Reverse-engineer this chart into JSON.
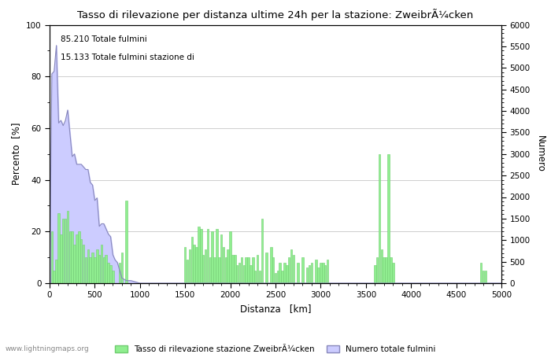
{
  "title": "Tasso di rilevazione per distanza ultime 24h per la stazione: ZweibrÃ¼cken",
  "xlabel": "Distanza   [km]",
  "ylabel_left": "Percento  [%]",
  "ylabel_right": "Numero",
  "annotation_line1": "85.210 Totale fulmini",
  "annotation_line2": "15.133 Totale fulmini stazione di",
  "legend_green": "Tasso di rilevazione stazione ZweibrÃ¼cken",
  "legend_blue": "Numero totale fulmini",
  "watermark": "www.lightningmaps.org",
  "xlim": [
    0,
    5000
  ],
  "ylim_left": [
    0,
    100
  ],
  "ylim_right": [
    0,
    6000
  ],
  "bar_color": "#90EE90",
  "fill_color": "#ccccff",
  "line_color": "#8888bb",
  "bar_edge_color": "#70cc70",
  "background_color": "#ffffff",
  "grid_color": "#bbbbbb",
  "green_bars_x": [
    25,
    50,
    75,
    100,
    125,
    150,
    175,
    200,
    225,
    250,
    275,
    300,
    325,
    350,
    375,
    400,
    425,
    450,
    475,
    500,
    525,
    550,
    575,
    600,
    625,
    650,
    675,
    700,
    725,
    750,
    775,
    800,
    850,
    1500,
    1525,
    1550,
    1575,
    1600,
    1625,
    1650,
    1675,
    1700,
    1725,
    1750,
    1775,
    1800,
    1825,
    1850,
    1875,
    1900,
    1925,
    1950,
    1975,
    2000,
    2025,
    2050,
    2075,
    2100,
    2125,
    2150,
    2175,
    2200,
    2225,
    2250,
    2275,
    2300,
    2325,
    2350,
    2400,
    2450,
    2475,
    2500,
    2525,
    2550,
    2575,
    2600,
    2625,
    2650,
    2675,
    2700,
    2750,
    2800,
    2850,
    2875,
    2900,
    2950,
    2975,
    3000,
    3025,
    3050,
    3075,
    3600,
    3625,
    3650,
    3675,
    3700,
    3725,
    3750,
    3775,
    3800,
    4775,
    4800,
    4825
  ],
  "green_bars_h": [
    20,
    5,
    9,
    27,
    19,
    25,
    25,
    28,
    20,
    20,
    15,
    19,
    20,
    17,
    15,
    10,
    13,
    10,
    12,
    10,
    13,
    11,
    15,
    10,
    11,
    8,
    7,
    5,
    0,
    0,
    8,
    12,
    32,
    14,
    9,
    13,
    18,
    15,
    14,
    22,
    21,
    11,
    13,
    21,
    10,
    20,
    10,
    21,
    10,
    19,
    14,
    10,
    13,
    20,
    11,
    11,
    7,
    8,
    10,
    7,
    10,
    10,
    7,
    10,
    5,
    11,
    5,
    25,
    12,
    14,
    10,
    4,
    5,
    8,
    5,
    8,
    7,
    10,
    13,
    11,
    8,
    10,
    6,
    7,
    8,
    9,
    6,
    8,
    8,
    7,
    9,
    7,
    10,
    50,
    13,
    10,
    10,
    50,
    10,
    8,
    8,
    5,
    5
  ],
  "blue_line_x": [
    0,
    25,
    50,
    75,
    100,
    125,
    150,
    175,
    200,
    225,
    250,
    275,
    300,
    325,
    350,
    375,
    400,
    425,
    450,
    475,
    500,
    525,
    550,
    575,
    600,
    625,
    650,
    675,
    700,
    725,
    750,
    800,
    850,
    900,
    1000,
    1200,
    1500,
    2000,
    3000,
    5000
  ],
  "blue_line_y": [
    0,
    81,
    82,
    92,
    62,
    63,
    61,
    63,
    67,
    58,
    49,
    50,
    46,
    46,
    46,
    45,
    44,
    44,
    39,
    38,
    32,
    33,
    22,
    23,
    23,
    21,
    19,
    18,
    11,
    9,
    8,
    2,
    1,
    1,
    0,
    0,
    0,
    0,
    0,
    0
  ],
  "blue_fill_x": [
    0,
    25,
    50,
    75,
    100,
    125,
    150,
    175,
    200,
    225,
    250,
    275,
    300,
    325,
    350,
    375,
    400,
    425,
    450,
    475,
    500,
    525,
    550,
    575,
    600,
    625,
    650,
    675,
    700,
    725,
    750,
    800,
    850,
    900,
    1000,
    1200,
    1500,
    2000,
    3000,
    5000
  ],
  "blue_fill_y": [
    0,
    81,
    82,
    92,
    62,
    63,
    61,
    63,
    67,
    58,
    49,
    50,
    46,
    46,
    46,
    45,
    44,
    44,
    39,
    38,
    32,
    33,
    22,
    23,
    23,
    21,
    19,
    18,
    11,
    9,
    8,
    2,
    1,
    1,
    0,
    0,
    0,
    0,
    0,
    0
  ]
}
